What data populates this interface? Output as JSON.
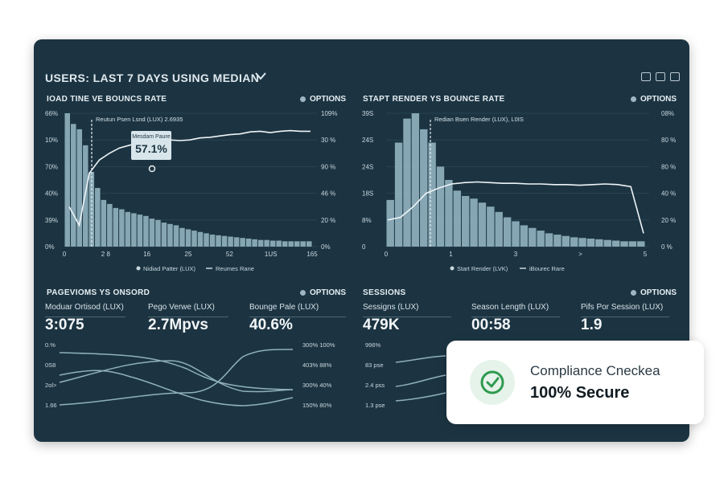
{
  "header": {
    "title": "USERS: LAST 7 DAYS USING MEDIAN"
  },
  "panels": {
    "load_time": {
      "title": "IOAD TINE VE BOUNCS RATE",
      "options": "OPTIONS",
      "y_left": [
        "66%",
        "10%",
        "70%",
        "40%",
        "39%",
        "0%"
      ],
      "y_right": [
        "109%",
        "30 %",
        "90 %",
        "46 %",
        "20 %",
        "0%"
      ],
      "x_ticks": [
        "0",
        "2 8",
        "16",
        "25",
        "52",
        "1US",
        "165"
      ],
      "median_note": "Reutun Psen Lsnd (LUX) 2.6935",
      "callout_label": "Mesdam Paure",
      "callout_value": "57.1%",
      "legend": [
        "Nidiad Patter (LUX)",
        "Reumes Rane"
      ],
      "bars": [
        100,
        92,
        88,
        76,
        56,
        44,
        35,
        32,
        29,
        28,
        26,
        25,
        24,
        23,
        21,
        20,
        18,
        17,
        16,
        14,
        13,
        12,
        11,
        10,
        9,
        8.5,
        8,
        7.5,
        7,
        6.5,
        6,
        5.5,
        5,
        5,
        4.5,
        4.5,
        4,
        4,
        4,
        4,
        4
      ],
      "line": [
        30,
        16,
        55,
        65,
        70,
        74,
        76,
        78,
        78.5,
        79,
        80,
        79.5,
        80,
        81.5,
        82,
        83,
        84,
        84.5,
        86,
        86.5,
        85.5,
        86.5,
        87,
        86.5,
        86.5
      ]
    },
    "start_render": {
      "title": "STAPT RENDER YS BOUNCE RATE",
      "options": "OPTIONS",
      "y_left": [
        "39S",
        "24S",
        "24S",
        "18S",
        "8%",
        "0"
      ],
      "y_right": [
        "08%",
        "80 %",
        "80 %",
        "40 %",
        "20 %",
        "0 %"
      ],
      "x_ticks": [
        "0",
        "1",
        "3",
        ">",
        "5"
      ],
      "median_note": "Redian Bsen Render (LUX), L0IS",
      "legend": [
        "Start Render (LVK)",
        "iBourec Rare"
      ],
      "bars": [
        35,
        78,
        96,
        100,
        88,
        78,
        60,
        50,
        42,
        38,
        36,
        33,
        30,
        26,
        22,
        19,
        16,
        14,
        12,
        10,
        9,
        8,
        7,
        6.5,
        6,
        5.5,
        5,
        4.5,
        4,
        4,
        4
      ],
      "line": [
        20,
        22,
        30,
        40,
        44,
        47,
        48,
        48.5,
        48,
        47.5,
        47.5,
        47,
        47,
        46.5,
        46.5,
        46,
        46.5,
        47,
        46.5,
        45,
        10
      ]
    },
    "pageviews": {
      "title": "PAGEVIOMS YS ONSORD",
      "options": "OPTIONS",
      "metrics": [
        {
          "label": "Moduar Ortisod (LUX)",
          "value": "3:075"
        },
        {
          "label": "Pego Verwe (LUX)",
          "value": "2.7Mpvs"
        },
        {
          "label": "Bounge Pale (LUX)",
          "value": "40.6%"
        }
      ],
      "y_left": [
        "0.%",
        "0S8",
        "2ol>",
        "1.66"
      ],
      "y_right": [
        "300% 100%",
        "403% 88%",
        "300% 40%",
        "150% 80%"
      ]
    },
    "sessions": {
      "title": "SESSIONS",
      "options": "OPTIONS",
      "metrics": [
        {
          "label": "Sessigns (LUX)",
          "value": "479K"
        },
        {
          "label": "Season Length (LUX)",
          "value": "00:58"
        },
        {
          "label": "Pifs Por Session (LUX)",
          "value": "1.9"
        }
      ],
      "y_left": [
        "996%",
        "83 pse",
        "2.4 pss",
        "1.3 pse"
      ]
    }
  },
  "compliance": {
    "title": "Compliance Cneckea",
    "value": "100% Secure"
  },
  "colors": {
    "background": "#1c3442",
    "bar": "#8fb0be",
    "line": "#eef4f6",
    "accent_green": "#2e9a4f"
  }
}
